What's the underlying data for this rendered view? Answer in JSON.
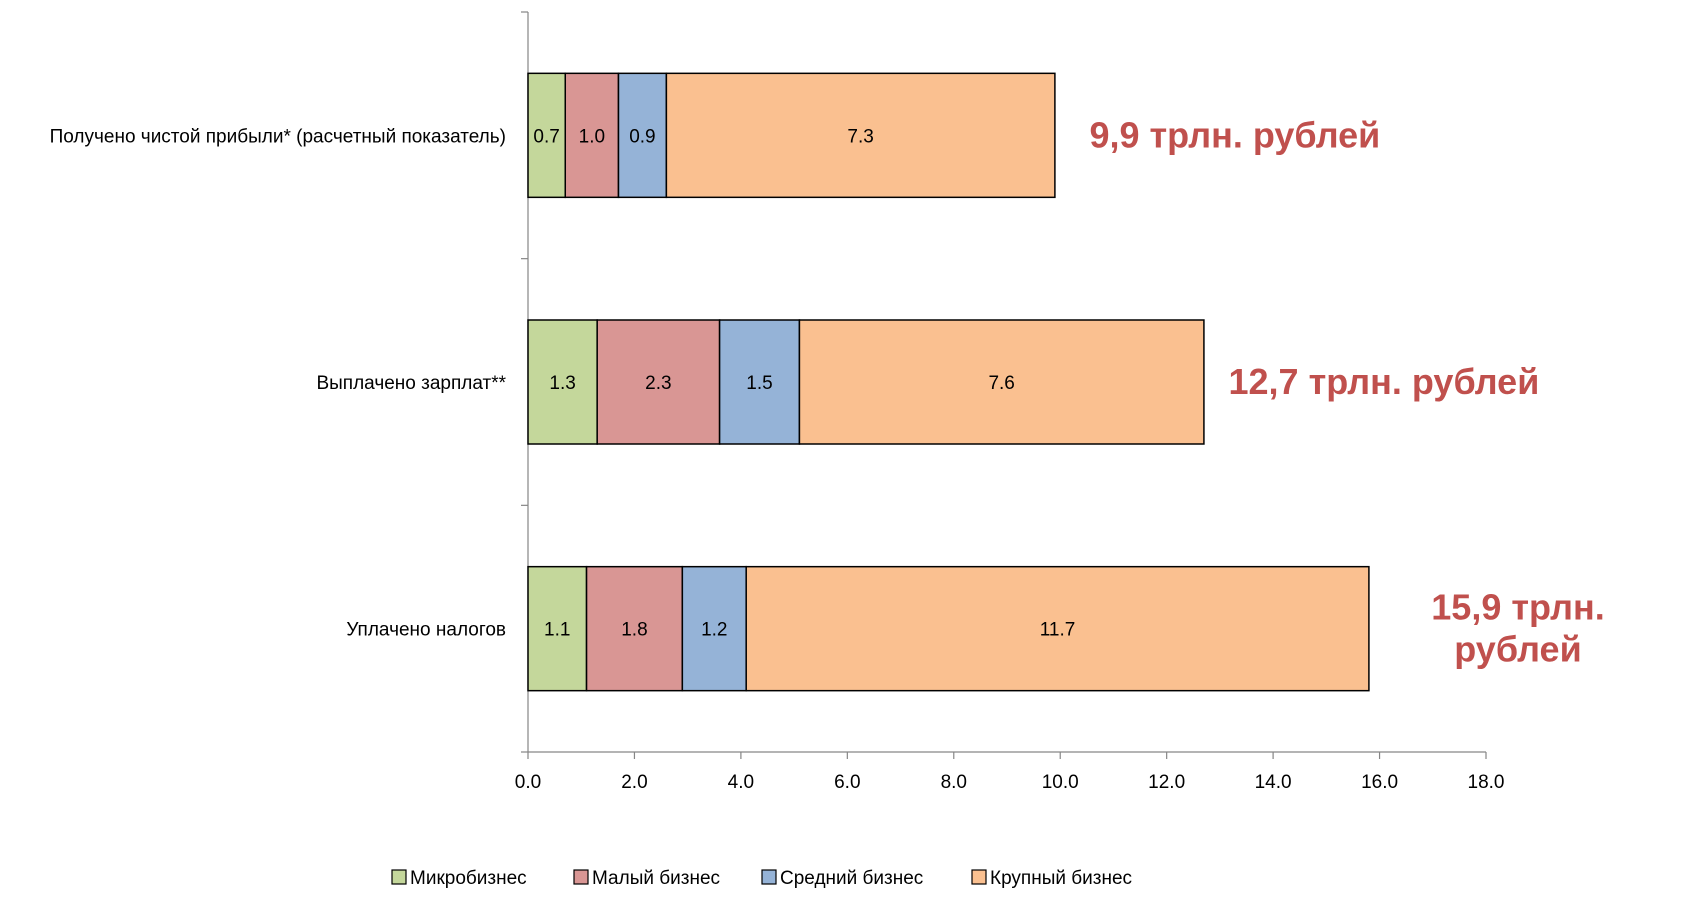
{
  "chart_data": {
    "type": "bar",
    "orientation": "horizontal",
    "stacked": true,
    "categories": [
      "Получено чистой прибыли* (расчетный показатель)",
      "Выплачено зарплат**",
      "Уплачено налогов"
    ],
    "series": [
      {
        "name": "Микробизнес",
        "values": [
          0.7,
          1.3,
          1.1
        ],
        "color": "#c4d79b"
      },
      {
        "name": "Малый бизнес",
        "values": [
          1.0,
          2.3,
          1.8
        ],
        "color": "#d99694"
      },
      {
        "name": "Средний бизнес",
        "values": [
          0.9,
          1.5,
          1.2
        ],
        "color": "#95b3d7"
      },
      {
        "name": "Крупный бизнес",
        "values": [
          7.3,
          7.6,
          11.7
        ],
        "color": "#fac090"
      }
    ],
    "totals": [
      {
        "lines": [
          "9,9 трлн. рублей"
        ]
      },
      {
        "lines": [
          "12,7 трлн. рублей"
        ]
      },
      {
        "lines": [
          "15,9 трлн.",
          "рублей"
        ]
      }
    ],
    "xlim": [
      0,
      18
    ],
    "xticks": [
      "0.0",
      "2.0",
      "4.0",
      "6.0",
      "8.0",
      "10.0",
      "12.0",
      "14.0",
      "16.0",
      "18.0"
    ],
    "xlabel": "",
    "ylabel": "",
    "title": "",
    "grid": false,
    "legend": "bottom",
    "total_color": "#c0504d"
  }
}
